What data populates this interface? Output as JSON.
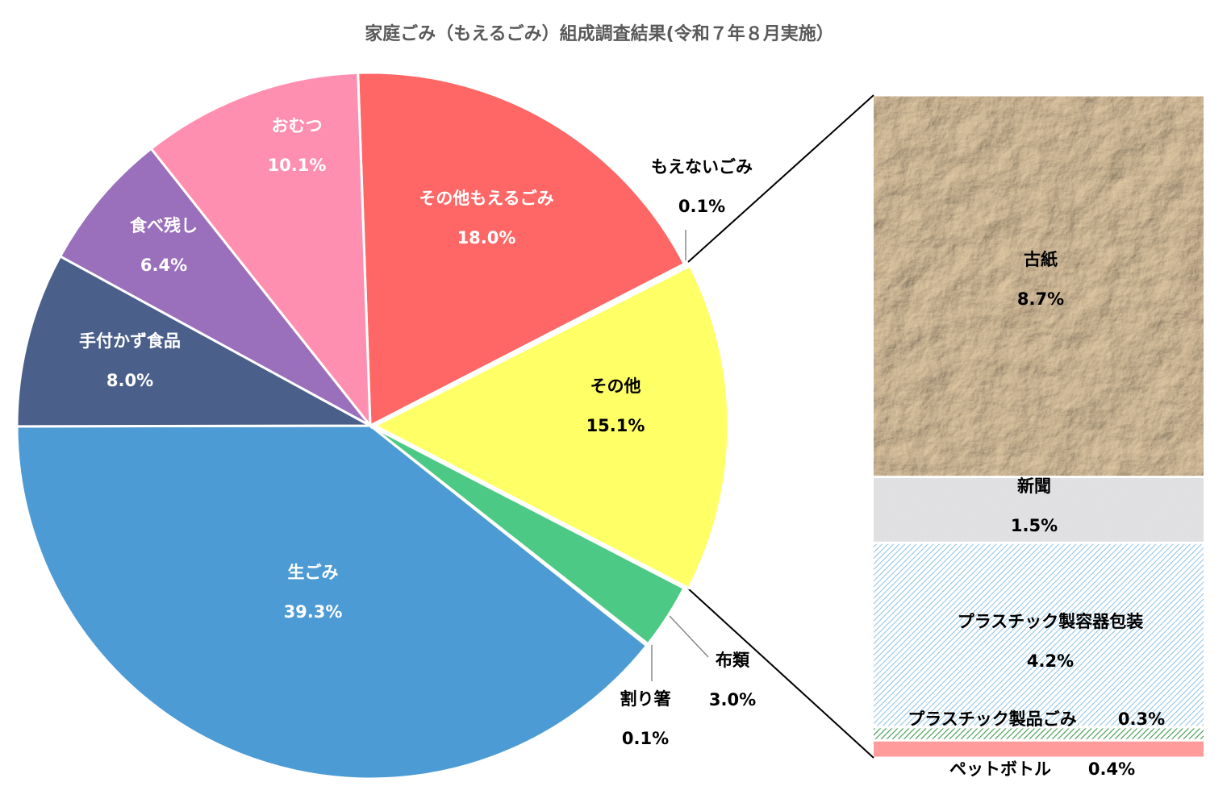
{
  "chart_data": [
    {
      "type": "pie",
      "title": "家庭ごみ（もえるごみ）組成調査結果(令和７年８月実施）",
      "categories": [
        "その他もえるごみ",
        "もえないごみ",
        "その他",
        "布類",
        "割り箸",
        "生ごみ",
        "手付かず食品",
        "食べ残し",
        "おむつ"
      ],
      "values": [
        18.0,
        0.1,
        15.1,
        3.0,
        0.1,
        39.3,
        8.0,
        6.4,
        10.1
      ],
      "value_labels": [
        "18.0%",
        "0.1%",
        "15.1%",
        "3.0%",
        "0.1%",
        "39.3%",
        "8.0%",
        "6.4%",
        "10.1%"
      ],
      "colors": [
        "#ff6666",
        "#ffc000",
        "#ffff66",
        "#4dc986",
        "#c07a3a",
        "#4d9bd4",
        "#4a5f8a",
        "#9a6fbb",
        "#ff8fb1"
      ]
    },
    {
      "type": "bar",
      "categories": [
        "古紙",
        "新聞",
        "プラスチック製容器包装",
        "プラスチック製品ごみ",
        "ペットボトル"
      ],
      "values": [
        8.7,
        1.5,
        4.2,
        0.3,
        0.4
      ],
      "value_labels": [
        "8.7%",
        "1.5%",
        "4.2%",
        "0.3%",
        "0.4%"
      ],
      "colors": [
        "#c9a67c",
        "#c4c4c4",
        "#6fb3dc",
        "#3c9a4c",
        "#ff9b9b"
      ]
    }
  ]
}
